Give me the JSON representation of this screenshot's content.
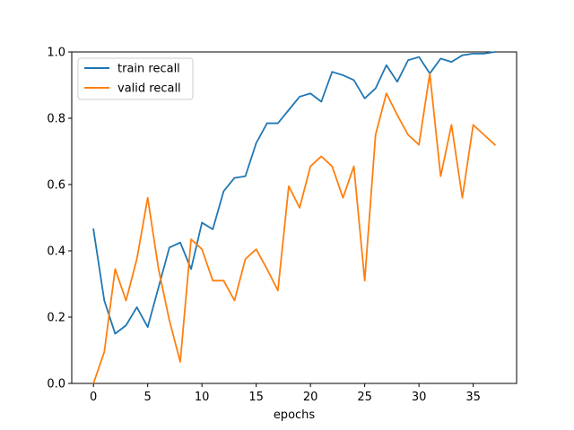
{
  "chart_data": {
    "type": "line",
    "title": "",
    "xlabel": "epochs",
    "ylabel": "",
    "xlim": [
      -2,
      39
    ],
    "ylim": [
      0,
      1
    ],
    "xticks": [
      0,
      5,
      10,
      15,
      20,
      25,
      30,
      35
    ],
    "yticks": [
      0.0,
      0.2,
      0.4,
      0.6,
      0.8,
      1.0
    ],
    "xtick_labels": [
      "0",
      "5",
      "10",
      "15",
      "20",
      "25",
      "30",
      "35"
    ],
    "ytick_labels": [
      "0.0",
      "0.2",
      "0.4",
      "0.6",
      "0.8",
      "1.0"
    ],
    "grid": false,
    "legend_position": "upper-left",
    "x": [
      0,
      1,
      2,
      3,
      4,
      5,
      6,
      7,
      8,
      9,
      10,
      11,
      12,
      13,
      14,
      15,
      16,
      17,
      18,
      19,
      20,
      21,
      22,
      23,
      24,
      25,
      26,
      27,
      28,
      29,
      30,
      31,
      32,
      33,
      34,
      35,
      36,
      37
    ],
    "series": [
      {
        "name": "train recall",
        "color": "#1f77b4",
        "values": [
          0.465,
          0.25,
          0.15,
          0.175,
          0.23,
          0.17,
          0.29,
          0.41,
          0.425,
          0.345,
          0.485,
          0.465,
          0.58,
          0.62,
          0.625,
          0.725,
          0.785,
          0.785,
          0.825,
          0.865,
          0.875,
          0.85,
          0.94,
          0.93,
          0.915,
          0.86,
          0.89,
          0.96,
          0.91,
          0.975,
          0.985,
          0.935,
          0.98,
          0.97,
          0.99,
          0.995,
          0.995,
          1.0
        ]
      },
      {
        "name": "valid recall",
        "color": "#ff7f0e",
        "values": [
          0.0,
          0.095,
          0.345,
          0.25,
          0.375,
          0.56,
          0.345,
          0.19,
          0.065,
          0.435,
          0.405,
          0.31,
          0.31,
          0.25,
          0.375,
          0.405,
          0.345,
          0.28,
          0.595,
          0.53,
          0.655,
          0.685,
          0.655,
          0.56,
          0.655,
          0.31,
          0.75,
          0.875,
          0.81,
          0.75,
          0.72,
          0.935,
          0.625,
          0.78,
          0.56,
          0.78,
          0.75,
          0.72
        ]
      }
    ]
  }
}
